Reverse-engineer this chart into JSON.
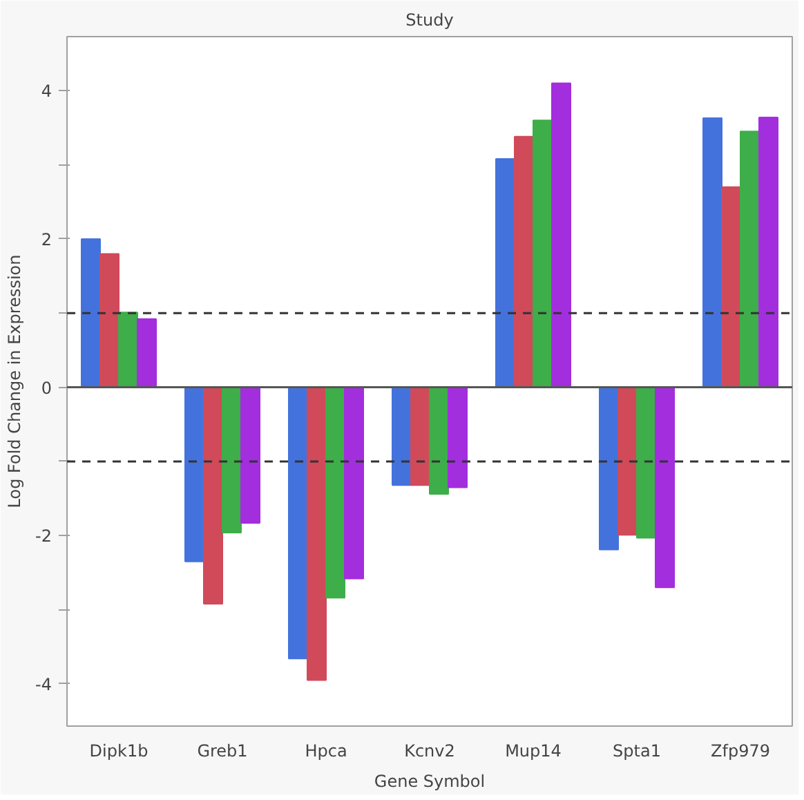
{
  "chart_data": {
    "type": "bar",
    "title": "Study",
    "xlabel": "Gene Symbol",
    "ylabel": "Log Fold Change in Expression",
    "categories": [
      "Dipk1b",
      "Greb1",
      "Hpca",
      "Kcnv2",
      "Mup14",
      "Spta1",
      "Zfp979"
    ],
    "series": [
      {
        "color": "#4472dd",
        "values": [
          2.0,
          -2.35,
          -3.66,
          -1.32,
          3.08,
          -2.19,
          3.63
        ]
      },
      {
        "color": "#d04a5a",
        "values": [
          1.8,
          -2.92,
          -3.95,
          -1.32,
          3.38,
          -1.99,
          2.7
        ]
      },
      {
        "color": "#3dae49",
        "values": [
          1.01,
          -1.96,
          -2.84,
          -1.44,
          3.6,
          -2.03,
          3.45
        ]
      },
      {
        "color": "#a22ede",
        "values": [
          0.92,
          -1.83,
          -2.58,
          -1.35,
          4.1,
          -2.7,
          3.64
        ]
      }
    ],
    "ylim": [
      -4.57,
      4.73
    ],
    "yticks": [
      {
        "value": -4,
        "label": "-4"
      },
      {
        "value": -3,
        "label": null
      },
      {
        "value": -2,
        "label": "-2"
      },
      {
        "value": -1,
        "label": null
      },
      0,
      {
        "value": 1,
        "label": null
      },
      2,
      {
        "value": 3,
        "label": null
      },
      4
    ],
    "ref_lines": [
      {
        "axis": "y",
        "value": 1,
        "color": "#333333",
        "line_style": "dashed"
      },
      {
        "axis": "y",
        "value": -1,
        "color": "#333333",
        "line_style": "dashed"
      },
      {
        "axis": "y",
        "value": 0,
        "color": "#555555",
        "line_style": "solid"
      }
    ],
    "grid": false
  }
}
